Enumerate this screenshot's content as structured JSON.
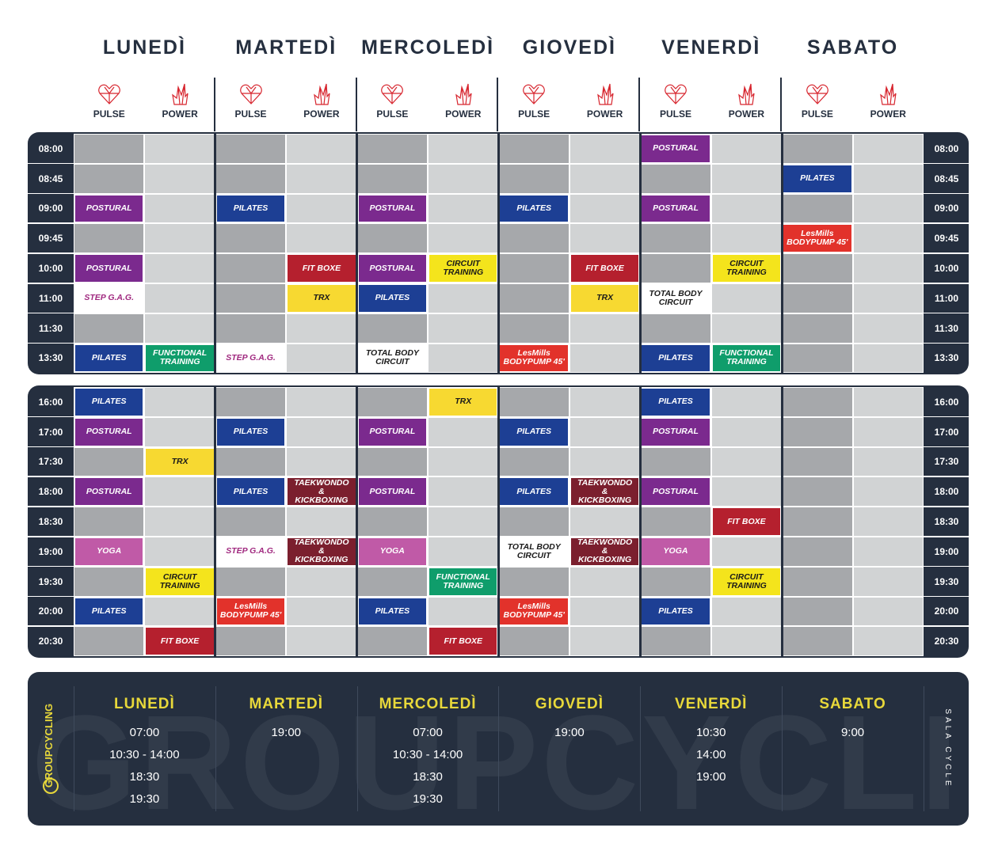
{
  "days": [
    "LUNEDÌ",
    "MARTEDÌ",
    "MERCOLEDÌ",
    "GIOVEDÌ",
    "VENERDÌ",
    "SABATO"
  ],
  "rooms": [
    "PULSE",
    "POWER"
  ],
  "class_colors": {
    "POSTURAL": {
      "bg": "#7b2a8e",
      "fg": "#ffffff"
    },
    "PILATES": {
      "bg": "#1d3f94",
      "fg": "#ffffff"
    },
    "STEP G.A.G.": {
      "bg": "#ffffff",
      "fg": "#a0287f"
    },
    "FUNCTIONAL TRAINING": {
      "bg": "#0f9d6b",
      "fg": "#ffffff"
    },
    "FIT BOXE": {
      "bg": "#b5202e",
      "fg": "#ffffff"
    },
    "TRX": {
      "bg": "#f7d931",
      "fg": "#1a1a1a"
    },
    "CIRCUIT TRAINING": {
      "bg": "#f4e41c",
      "fg": "#1a1a1a"
    },
    "TOTAL BODY CIRCUIT": {
      "bg": "#ffffff",
      "fg": "#1a1a1a"
    },
    "LesMills BODYPUMP 45'": {
      "bg": "#e2322b",
      "fg": "#ffffff"
    },
    "TAEKWONDO & KICKBOXING": {
      "bg": "#7b1f2e",
      "fg": "#ffffff"
    },
    "YOGA": {
      "bg": "#c05aa7",
      "fg": "#ffffff"
    }
  },
  "blocks": [
    {
      "rows": [
        {
          "time": "08:00",
          "cells": [
            null,
            null,
            null,
            null,
            null,
            null,
            null,
            null,
            "POSTURAL",
            null,
            null,
            null
          ]
        },
        {
          "time": "08:45",
          "cells": [
            null,
            null,
            null,
            null,
            null,
            null,
            null,
            null,
            null,
            null,
            "PILATES",
            null
          ]
        },
        {
          "time": "09:00",
          "cells": [
            "POSTURAL",
            null,
            "PILATES",
            null,
            "POSTURAL",
            null,
            "PILATES",
            null,
            "POSTURAL",
            null,
            null,
            null
          ]
        },
        {
          "time": "09:45",
          "cells": [
            null,
            null,
            null,
            null,
            null,
            null,
            null,
            null,
            null,
            null,
            "LesMills BODYPUMP 45'",
            null
          ]
        },
        {
          "time": "10:00",
          "cells": [
            "POSTURAL",
            null,
            null,
            "FIT BOXE",
            "POSTURAL",
            "CIRCUIT TRAINING",
            null,
            "FIT BOXE",
            null,
            "CIRCUIT TRAINING",
            null,
            null
          ]
        },
        {
          "time": "11:00",
          "cells": [
            "STEP G.A.G.",
            null,
            null,
            "TRX",
            "PILATES",
            null,
            null,
            "TRX",
            "TOTAL BODY CIRCUIT",
            null,
            null,
            null
          ]
        },
        {
          "time": "11:30",
          "cells": [
            null,
            null,
            null,
            null,
            null,
            null,
            null,
            null,
            null,
            null,
            null,
            null
          ]
        },
        {
          "time": "13:30",
          "cells": [
            "PILATES",
            "FUNCTIONAL TRAINING",
            "STEP G.A.G.",
            null,
            "TOTAL BODY CIRCUIT",
            null,
            "LesMills BODYPUMP 45'",
            null,
            "PILATES",
            "FUNCTIONAL TRAINING",
            null,
            null
          ]
        }
      ]
    },
    {
      "rows": [
        {
          "time": "16:00",
          "cells": [
            "PILATES",
            null,
            null,
            null,
            null,
            "TRX",
            null,
            null,
            "PILATES",
            null,
            null,
            null
          ]
        },
        {
          "time": "17:00",
          "cells": [
            "POSTURAL",
            null,
            "PILATES",
            null,
            "POSTURAL",
            null,
            "PILATES",
            null,
            "POSTURAL",
            null,
            null,
            null
          ]
        },
        {
          "time": "17:30",
          "cells": [
            null,
            "TRX",
            null,
            null,
            null,
            null,
            null,
            null,
            null,
            null,
            null,
            null
          ]
        },
        {
          "time": "18:00",
          "cells": [
            "POSTURAL",
            null,
            "PILATES",
            "TAEKWONDO & KICKBOXING",
            "POSTURAL",
            null,
            "PILATES",
            "TAEKWONDO & KICKBOXING",
            "POSTURAL",
            null,
            null,
            null
          ]
        },
        {
          "time": "18:30",
          "cells": [
            null,
            null,
            null,
            null,
            null,
            null,
            null,
            null,
            null,
            "FIT BOXE",
            null,
            null
          ]
        },
        {
          "time": "19:00",
          "cells": [
            "YOGA",
            null,
            "STEP G.A.G.",
            "TAEKWONDO & KICKBOXING",
            "YOGA",
            null,
            "TOTAL BODY CIRCUIT",
            "TAEKWONDO & KICKBOXING",
            "YOGA",
            null,
            null,
            null
          ]
        },
        {
          "time": "19:30",
          "cells": [
            null,
            "CIRCUIT TRAINING",
            null,
            null,
            null,
            "FUNCTIONAL TRAINING",
            null,
            null,
            null,
            "CIRCUIT TRAINING",
            null,
            null
          ]
        },
        {
          "time": "20:00",
          "cells": [
            "PILATES",
            null,
            "LesMills BODYPUMP 45'",
            null,
            "PILATES",
            null,
            "LesMills BODYPUMP 45'",
            null,
            "PILATES",
            null,
            null,
            null
          ]
        },
        {
          "time": "20:30",
          "cells": [
            null,
            "FIT BOXE",
            null,
            null,
            null,
            "FIT BOXE",
            null,
            null,
            null,
            null,
            null,
            null
          ]
        }
      ]
    }
  ],
  "groupcycling": {
    "logo": "GROUPCYCLING",
    "room": "SALA CYCLE",
    "schedule": [
      [
        "07:00",
        "10:30 - 14:00",
        "18:30",
        "19:30"
      ],
      [
        "19:00"
      ],
      [
        "07:00",
        "10:30 - 14:00",
        "18:30",
        "19:30"
      ],
      [
        "19:00"
      ],
      [
        "10:30",
        "14:00",
        "19:00"
      ],
      [
        "9:00"
      ]
    ]
  }
}
